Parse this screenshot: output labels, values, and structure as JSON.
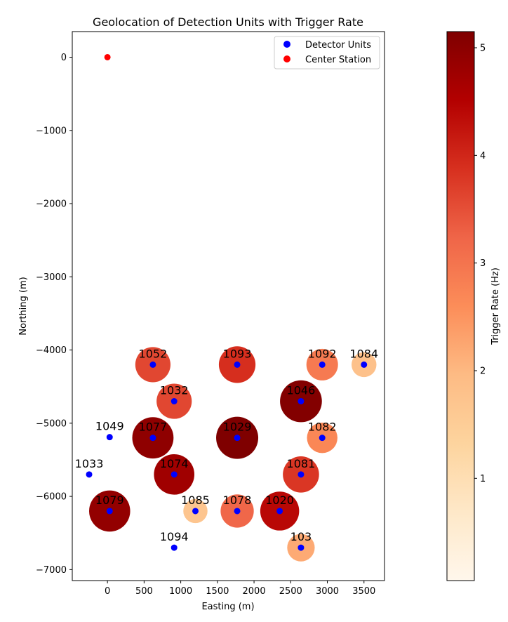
{
  "chart_data": {
    "type": "scatter",
    "title": "Geolocation of Detection Units with Trigger Rate",
    "xlabel": "Easting (m)",
    "ylabel": "Northing (m)",
    "xlim": [
      -480,
      3780
    ],
    "ylim": [
      -7150,
      350
    ],
    "xticks": [
      0,
      500,
      1000,
      1500,
      2000,
      2500,
      3000,
      3500
    ],
    "yticks": [
      0,
      -1000,
      -2000,
      -3000,
      -4000,
      -5000,
      -6000,
      -7000
    ],
    "legend": {
      "position": "top-right",
      "entries": [
        {
          "label": "Detector Units",
          "color": "#0000ff"
        },
        {
          "label": "Center Station",
          "color": "#ff0000"
        }
      ]
    },
    "colorbar": {
      "label": "Trigger Rate (Hz)",
      "colormap": "OrRd",
      "min": 0.05,
      "max": 5.15,
      "ticks": [
        1,
        2,
        3,
        4,
        5
      ]
    },
    "center_station": {
      "x": 0,
      "y": 0
    },
    "units": [
      {
        "id": "1052",
        "x": 620,
        "y": -4200,
        "rate": 3.6
      },
      {
        "id": "1093",
        "x": 1770,
        "y": -4200,
        "rate": 3.9
      },
      {
        "id": "1092",
        "x": 2930,
        "y": -4200,
        "rate": 2.9
      },
      {
        "id": "1084",
        "x": 3500,
        "y": -4200,
        "rate": 1.8
      },
      {
        "id": "1032",
        "x": 910,
        "y": -4700,
        "rate": 3.6
      },
      {
        "id": "1046",
        "x": 2640,
        "y": -4700,
        "rate": 5.1
      },
      {
        "id": "1049",
        "x": 30,
        "y": -5190,
        "rate": null
      },
      {
        "id": "1077",
        "x": 620,
        "y": -5200,
        "rate": 4.95
      },
      {
        "id": "1029",
        "x": 1770,
        "y": -5200,
        "rate": 5.15
      },
      {
        "id": "1082",
        "x": 2930,
        "y": -5200,
        "rate": 2.7
      },
      {
        "id": "1033",
        "x": -250,
        "y": -5700,
        "rate": null
      },
      {
        "id": "1074",
        "x": 910,
        "y": -5700,
        "rate": 4.75
      },
      {
        "id": "1081",
        "x": 2640,
        "y": -5700,
        "rate": 3.8
      },
      {
        "id": "1079",
        "x": 30,
        "y": -6200,
        "rate": 4.9
      },
      {
        "id": "1085",
        "x": 1200,
        "y": -6200,
        "rate": 1.7
      },
      {
        "id": "1078",
        "x": 1770,
        "y": -6200,
        "rate": 3.2
      },
      {
        "id": "1020",
        "x": 2350,
        "y": -6200,
        "rate": 4.4
      },
      {
        "id": "1094",
        "x": 910,
        "y": -6700,
        "rate": null
      },
      {
        "id": "103",
        "x": 2640,
        "y": -6700,
        "rate": 2.2
      }
    ]
  }
}
